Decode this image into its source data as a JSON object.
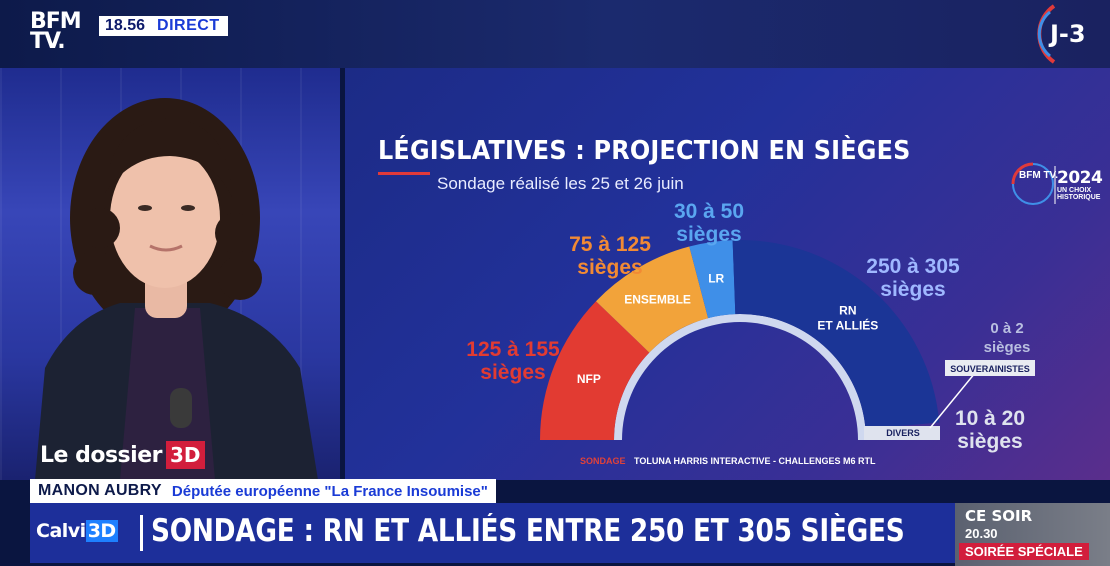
{
  "channel": {
    "logo_line1": "BFM",
    "logo_line2": "TV.",
    "time": "18.56",
    "live_label": "DIRECT",
    "countdown": "J-3"
  },
  "panel": {
    "title": "LÉGISLATIVES : PROJECTION EN SIÈGES",
    "subtitle": "Sondage réalisé les 25 et 26 juin",
    "badge_logo": "BFM TV.",
    "badge_year": "2024",
    "badge_tagline_1": "UN CHOIX",
    "badge_tagline_2": "HISTORIQUE",
    "source_tag": "SONDAGE",
    "source_text": "TOLUNA HARRIS INTERACTIVE - CHALLENGES M6 RTL"
  },
  "chart_data": {
    "type": "pie",
    "title": "LÉGISLATIVES : PROJECTION EN SIÈGES",
    "subtitle": "Sondage réalisé les 25 et 26 juin",
    "unit": "sièges",
    "series": [
      {
        "name": "NFP",
        "low": 125,
        "high": 155,
        "label": "125 à 155",
        "unit_label": "sièges",
        "color": "#e23b32",
        "label_color": "#e23b32"
      },
      {
        "name": "ENSEMBLE",
        "low": 75,
        "high": 125,
        "label": "75 à 125",
        "unit_label": "sièges",
        "color": "#f2a33a",
        "label_color": "#f28a34"
      },
      {
        "name": "LR",
        "low": 30,
        "high": 50,
        "label": "30 à 50",
        "unit_label": "sièges",
        "color": "#3f8fe8",
        "label_color": "#5aa6f0"
      },
      {
        "name": "RN ET ALLIÉS",
        "low": 250,
        "high": 305,
        "label": "250 à 305",
        "unit_label": "sièges",
        "color": "#1b3596",
        "label_color": "#9fb8ff"
      },
      {
        "name": "SOUVERAINISTES",
        "low": 0,
        "high": 2,
        "label": "0 à 2",
        "unit_label": "sièges",
        "color": "#e9ecf2",
        "label_color": "#b9bfe0"
      },
      {
        "name": "DIVERS",
        "low": 10,
        "high": 20,
        "label": "10 à 20",
        "unit_label": "sièges",
        "color": "#dfe3ee",
        "label_color": "#dfe3ee"
      }
    ],
    "segment_labels": [
      "NFP",
      "ENSEMBLE",
      "LR",
      "RN\nET ALLIÉS",
      "SOUVERAINISTES",
      "DIVERS"
    ]
  },
  "lower_third": {
    "segment": "Le dossier",
    "segment_box": "3D",
    "person_name": "MANON AUBRY",
    "person_function": "Députée européenne \"La France Insoumise\"",
    "show_logo": "Calvi",
    "show_logo_box": "3D",
    "headline": "SONDAGE : RN ET ALLIÉS ENTRE 250 ET 305 SIÈGES",
    "tonight_l1": "CE SOIR",
    "tonight_l2": "20.30",
    "tonight_l3": "SOIRÉE SPÉCIALE"
  }
}
